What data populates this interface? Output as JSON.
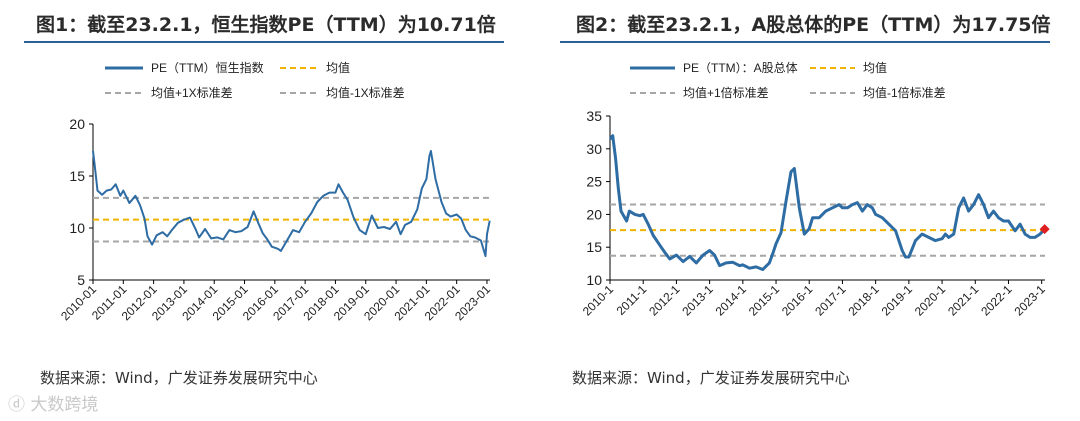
{
  "chart_data": [
    {
      "type": "line",
      "title": "图1：截至23.2.1，恒生指数PE（TTM）为10.71倍",
      "ylim": [
        5,
        20
      ],
      "yticks": [
        5,
        10,
        15,
        20
      ],
      "xlim": [
        2010,
        2023.1
      ],
      "xticks": [
        "2010-01",
        "2011-01",
        "2012-01",
        "2013-01",
        "2014-01",
        "2015-01",
        "2016-01",
        "2017-01",
        "2018-01",
        "2019-01",
        "2020-01",
        "2021-01",
        "2022-01",
        "2023-01"
      ],
      "legend": [
        "PE（TTM）恒生指数",
        "均值",
        "均值+1X标准差",
        "均值-1X标准差"
      ],
      "mean": 10.8,
      "upper": 12.9,
      "lower": 8.7,
      "colors": {
        "series": "#2e6ca4",
        "mean": "#f0b400",
        "band": "#a6a6a6"
      },
      "series": [
        {
          "name": "PE（TTM）恒生指数",
          "x": [
            2010.0,
            2010.05,
            2010.15,
            2010.3,
            2010.45,
            2010.6,
            2010.75,
            2010.9,
            2011.0,
            2011.2,
            2011.4,
            2011.55,
            2011.7,
            2011.8,
            2011.95,
            2012.1,
            2012.3,
            2012.45,
            2012.6,
            2012.8,
            2013.0,
            2013.2,
            2013.4,
            2013.5,
            2013.7,
            2013.9,
            2014.1,
            2014.3,
            2014.5,
            2014.7,
            2014.9,
            2015.1,
            2015.3,
            2015.45,
            2015.6,
            2015.75,
            2015.9,
            2016.1,
            2016.2,
            2016.4,
            2016.6,
            2016.8,
            2017.0,
            2017.2,
            2017.4,
            2017.6,
            2017.8,
            2018.0,
            2018.1,
            2018.25,
            2018.4,
            2018.6,
            2018.8,
            2019.0,
            2019.2,
            2019.4,
            2019.6,
            2019.8,
            2020.0,
            2020.15,
            2020.3,
            2020.5,
            2020.7,
            2020.85,
            2021.0,
            2021.1,
            2021.15,
            2021.3,
            2021.5,
            2021.65,
            2021.8,
            2022.0,
            2022.15,
            2022.3,
            2022.45,
            2022.6,
            2022.8,
            2022.95,
            2023.0,
            2023.09
          ],
          "values": [
            17.4,
            16.2,
            13.6,
            13.2,
            13.6,
            13.7,
            14.2,
            13.1,
            13.6,
            12.4,
            13.1,
            12.2,
            10.9,
            9.2,
            8.4,
            9.3,
            9.6,
            9.2,
            9.8,
            10.5,
            10.8,
            11.0,
            9.8,
            9.1,
            9.9,
            9.0,
            9.1,
            8.9,
            9.8,
            9.6,
            9.7,
            10.1,
            11.6,
            10.5,
            9.5,
            8.9,
            8.2,
            8.0,
            7.8,
            8.8,
            9.8,
            9.6,
            10.6,
            11.4,
            12.5,
            13.1,
            13.4,
            13.4,
            14.2,
            13.4,
            12.7,
            11.0,
            9.8,
            9.4,
            11.2,
            10.0,
            10.1,
            9.9,
            10.6,
            9.4,
            10.3,
            10.6,
            11.8,
            13.8,
            14.7,
            16.9,
            17.4,
            14.7,
            12.5,
            11.4,
            11.1,
            11.3,
            10.9,
            9.8,
            9.2,
            9.1,
            8.8,
            7.3,
            9.4,
            10.7
          ]
        }
      ]
    },
    {
      "type": "line",
      "title": "图2：截至23.2.1，A股总体的PE（TTM）为17.75倍",
      "ylim": [
        10,
        35
      ],
      "yticks": [
        10,
        15,
        20,
        25,
        30,
        35
      ],
      "xlim": [
        2010,
        2023.1
      ],
      "xticks": [
        "2010-1",
        "2011-1",
        "2012-1",
        "2013-1",
        "2014-1",
        "2015-1",
        "2016-1",
        "2017-1",
        "2018-1",
        "2019-1",
        "2020-1",
        "2021-1",
        "2022-1",
        "2023-1"
      ],
      "legend": [
        "PE（TTM）：A股总体",
        "均值",
        "均值+1倍标准差",
        "均值-1倍标准差"
      ],
      "mean": 17.6,
      "upper": 21.5,
      "lower": 13.7,
      "colors": {
        "series": "#2e6ca4",
        "mean": "#f0b400",
        "band": "#a6a6a6",
        "marker": "#e02020"
      },
      "series": [
        {
          "name": "PE（TTM）：A股总体",
          "x": [
            2010.0,
            2010.08,
            2010.17,
            2010.25,
            2010.33,
            2010.5,
            2010.58,
            2010.75,
            2010.9,
            2011.0,
            2011.15,
            2011.3,
            2011.5,
            2011.65,
            2011.8,
            2012.0,
            2012.2,
            2012.4,
            2012.6,
            2012.8,
            2013.0,
            2013.15,
            2013.3,
            2013.5,
            2013.7,
            2013.9,
            2014.0,
            2014.2,
            2014.4,
            2014.6,
            2014.8,
            2014.9,
            2015.0,
            2015.15,
            2015.3,
            2015.45,
            2015.55,
            2015.7,
            2015.85,
            2016.0,
            2016.1,
            2016.3,
            2016.5,
            2016.7,
            2016.9,
            2017.0,
            2017.15,
            2017.3,
            2017.45,
            2017.6,
            2017.75,
            2017.9,
            2018.0,
            2018.2,
            2018.4,
            2018.6,
            2018.8,
            2018.9,
            2019.0,
            2019.2,
            2019.4,
            2019.6,
            2019.8,
            2020.0,
            2020.1,
            2020.2,
            2020.35,
            2020.5,
            2020.65,
            2020.8,
            2020.95,
            2021.1,
            2021.25,
            2021.4,
            2021.55,
            2021.7,
            2021.85,
            2022.0,
            2022.2,
            2022.35,
            2022.5,
            2022.65,
            2022.8,
            2022.95,
            2023.09
          ],
          "values": [
            31.5,
            32.0,
            28.5,
            24.0,
            20.5,
            19.0,
            20.5,
            20.0,
            19.8,
            20.0,
            18.5,
            16.8,
            15.3,
            14.2,
            13.2,
            13.8,
            12.8,
            13.6,
            12.6,
            13.8,
            14.5,
            13.8,
            12.2,
            12.6,
            12.7,
            12.2,
            12.3,
            11.8,
            12.0,
            11.6,
            12.6,
            14.0,
            15.5,
            17.2,
            22.0,
            26.5,
            27.0,
            21.0,
            17.0,
            17.8,
            19.5,
            19.5,
            20.5,
            21.0,
            21.5,
            21.0,
            21.0,
            21.5,
            21.8,
            20.5,
            21.5,
            21.0,
            20.0,
            19.5,
            18.5,
            17.5,
            14.5,
            13.5,
            13.5,
            16.0,
            17.0,
            16.5,
            16.0,
            16.3,
            17.0,
            16.5,
            17.0,
            21.0,
            22.5,
            20.5,
            21.5,
            23.0,
            21.5,
            19.5,
            20.5,
            19.5,
            19.0,
            19.0,
            17.5,
            18.5,
            17.0,
            16.5,
            16.5,
            17.0,
            17.75
          ]
        }
      ]
    }
  ],
  "footer": {
    "source_left": "数据来源：Wind，广发证券发展研究中心",
    "source_right": "数据来源：Wind，广发证券发展研究中心",
    "watermark": "大数跨境"
  }
}
